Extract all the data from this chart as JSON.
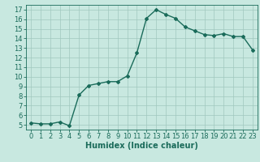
{
  "x": [
    0,
    1,
    2,
    3,
    4,
    5,
    6,
    7,
    8,
    9,
    10,
    11,
    12,
    13,
    14,
    15,
    16,
    17,
    18,
    19,
    20,
    21,
    22,
    23
  ],
  "y": [
    5.2,
    5.1,
    5.1,
    5.3,
    4.9,
    8.1,
    9.1,
    9.3,
    9.5,
    9.5,
    10.1,
    12.5,
    16.1,
    17.0,
    16.5,
    16.1,
    15.2,
    14.8,
    14.4,
    14.3,
    14.5,
    14.2,
    14.2,
    12.8
  ],
  "line_color": "#1a6b5a",
  "marker": "D",
  "marker_size": 2,
  "bg_color": "#c8e8e0",
  "grid_color": "#a0c8be",
  "tick_color": "#1a6b5a",
  "xlabel": "Humidex (Indice chaleur)",
  "ylabel": "",
  "xlim": [
    -0.5,
    23.5
  ],
  "ylim": [
    4.5,
    17.5
  ],
  "yticks": [
    5,
    6,
    7,
    8,
    9,
    10,
    11,
    12,
    13,
    14,
    15,
    16,
    17
  ],
  "xticks": [
    0,
    1,
    2,
    3,
    4,
    5,
    6,
    7,
    8,
    9,
    10,
    11,
    12,
    13,
    14,
    15,
    16,
    17,
    18,
    19,
    20,
    21,
    22,
    23
  ],
  "xlabel_fontsize": 7,
  "tick_fontsize": 6,
  "line_width": 1.0
}
